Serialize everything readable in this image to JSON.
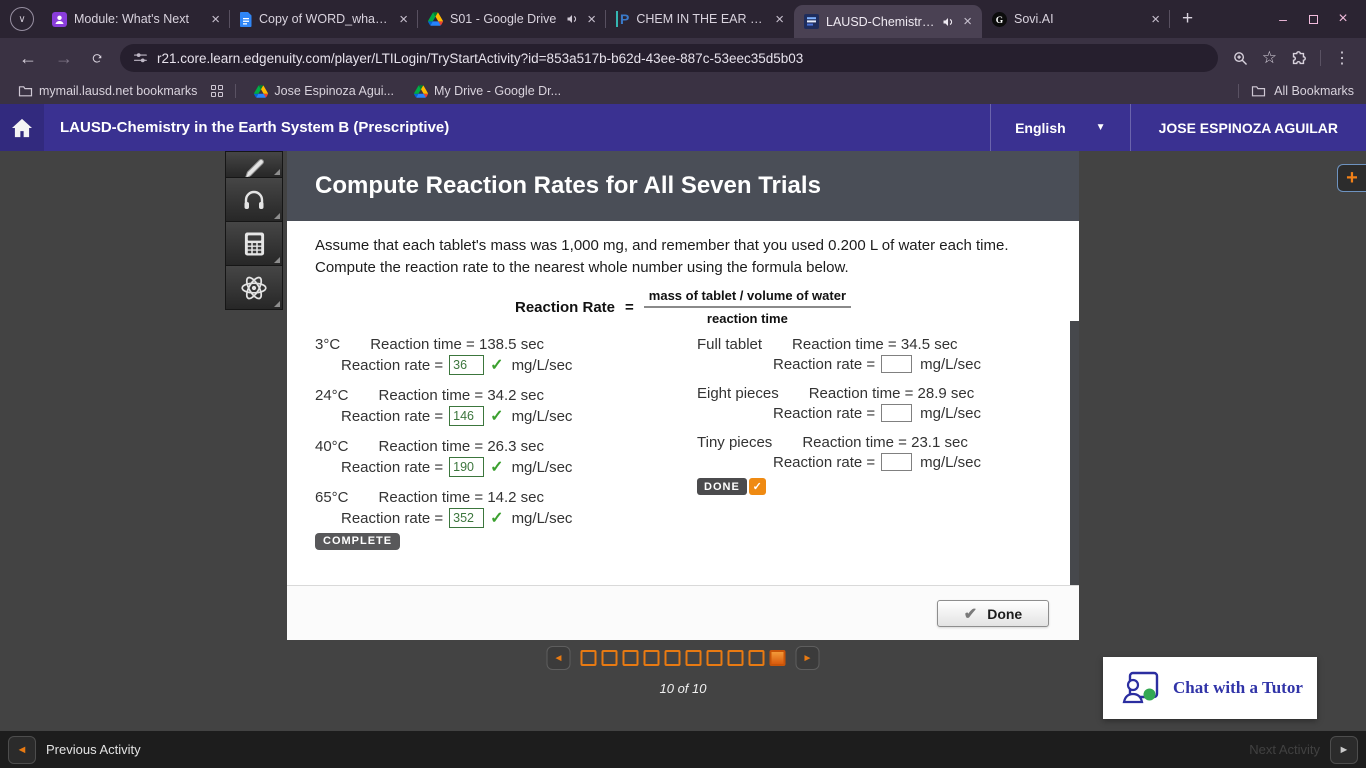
{
  "browser": {
    "tabs": [
      {
        "title": "Module: What's Next"
      },
      {
        "title": "Copy of WORD_whats_next"
      },
      {
        "title": "S01 - Google Drive"
      },
      {
        "title": "CHEM IN THE EAR SYS B E"
      },
      {
        "title": "LAUSD-Chemistry in the"
      },
      {
        "title": "Sovi.AI"
      }
    ],
    "url": "r21.core.learn.edgenuity.com/player/LTILogin/TryStartActivity?id=853a517b-b62d-43ee-887c-53eec35d5b03",
    "bookmarks": {
      "folder_label": "mymail.lausd.net bookmarks",
      "item1": "Jose Espinoza Agui...",
      "item2": "My Drive - Google Dr...",
      "all_bookmarks": "All Bookmarks"
    }
  },
  "header": {
    "course_title": "LAUSD-Chemistry in the Earth System B (Prescriptive)",
    "language": "English",
    "user_name": "JOSE ESPINOZA AGUILAR"
  },
  "activity": {
    "title": "Compute Reaction Rates for All Seven Trials",
    "instructions": "Assume that each tablet's mass was 1,000 mg, and remember that you used 0.200 L of water each time. Compute the reaction rate to the nearest whole number using the formula below.",
    "formula": {
      "label": "Reaction Rate",
      "equals": "=",
      "numerator": "mass of tablet / volume of water",
      "denominator": "reaction time"
    },
    "rate_prefix": "Reaction rate =",
    "rate_unit": "mg/L/sec",
    "trials_left": [
      {
        "label": "3°C",
        "time_text": "Reaction time = 138.5 sec",
        "rate": "36"
      },
      {
        "label": "24°C",
        "time_text": "Reaction time = 34.2 sec",
        "rate": "146"
      },
      {
        "label": "40°C",
        "time_text": "Reaction time = 26.3 sec",
        "rate": "190"
      },
      {
        "label": "65°C",
        "time_text": "Reaction time = 14.2 sec",
        "rate": "352"
      }
    ],
    "trials_right": [
      {
        "label": "Full tablet",
        "time_text": "Reaction time = 34.5 sec",
        "rate": ""
      },
      {
        "label": "Eight pieces",
        "time_text": "Reaction time = 28.9 sec",
        "rate": ""
      },
      {
        "label": "Tiny pieces",
        "time_text": "Reaction time = 23.1 sec",
        "rate": ""
      }
    ],
    "complete_badge": "COMPLETE",
    "done_badge": "DONE",
    "done_button": "Done"
  },
  "player": {
    "page_count": 10,
    "current_page": 10,
    "page_label": "10 of 10",
    "tutor_button": "Chat with a Tutor"
  },
  "footer": {
    "previous": "Previous Activity",
    "next": "Next Activity"
  },
  "colors": {
    "accent_orange": "#e87a12",
    "header_indigo": "#3a3191",
    "success_green": "#3c763d"
  }
}
